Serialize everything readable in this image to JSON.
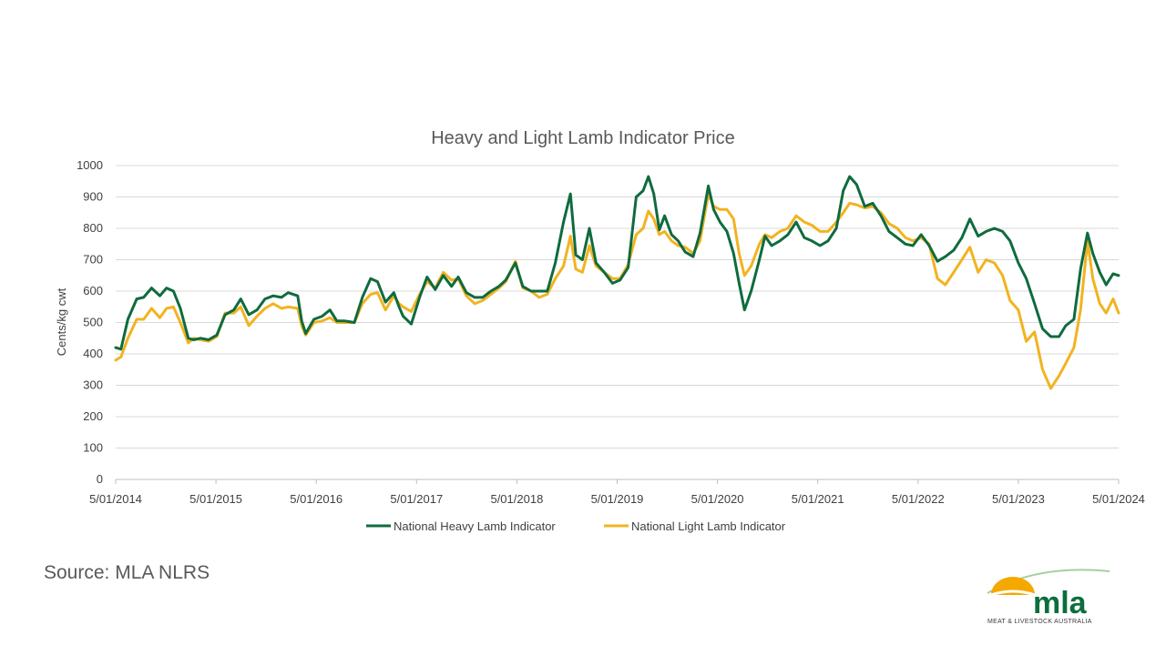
{
  "source": "Source: MLA NLRS",
  "logo": {
    "text": "mla",
    "tagline": "MEAT & LIVESTOCK AUSTRALIA",
    "colors": {
      "sun": "#f5a800",
      "text": "#0c6e3b",
      "arc": "#a6cfa0"
    }
  },
  "chart_data": {
    "type": "line",
    "title": "Heavy and Light Lamb Indicator Price",
    "ylabel": "Cents/kg cwt",
    "xlabel": "",
    "ylim": [
      0,
      1000
    ],
    "yticks": [
      0,
      100,
      200,
      300,
      400,
      500,
      600,
      700,
      800,
      900,
      1000
    ],
    "xlim": [
      "2014-01-05",
      "2024-05-01"
    ],
    "xtick_labels": [
      "5/01/2014",
      "5/01/2015",
      "5/01/2016",
      "5/01/2017",
      "5/01/2018",
      "5/01/2019",
      "5/01/2020",
      "5/01/2021",
      "5/01/2022",
      "5/01/2023",
      "5/01/2024"
    ],
    "grid": true,
    "legend": "bottom",
    "series": [
      {
        "name": "National Heavy Lamb Indicator",
        "color": "#0f6b3e",
        "points": [
          [
            "2014-01-05",
            420
          ],
          [
            "2014-01-25",
            415
          ],
          [
            "2014-02-20",
            510
          ],
          [
            "2014-03-25",
            575
          ],
          [
            "2014-04-20",
            580
          ],
          [
            "2014-05-20",
            610
          ],
          [
            "2014-06-20",
            585
          ],
          [
            "2014-07-15",
            610
          ],
          [
            "2014-08-10",
            600
          ],
          [
            "2014-09-05",
            545
          ],
          [
            "2014-10-05",
            450
          ],
          [
            "2014-10-25",
            445
          ],
          [
            "2014-11-20",
            450
          ],
          [
            "2014-12-20",
            445
          ],
          [
            "2015-01-20",
            460
          ],
          [
            "2015-02-20",
            525
          ],
          [
            "2015-03-25",
            540
          ],
          [
            "2015-04-20",
            575
          ],
          [
            "2015-05-20",
            525
          ],
          [
            "2015-06-20",
            540
          ],
          [
            "2015-07-20",
            575
          ],
          [
            "2015-08-20",
            585
          ],
          [
            "2015-09-20",
            580
          ],
          [
            "2015-10-15",
            595
          ],
          [
            "2015-11-20",
            585
          ],
          [
            "2015-12-05",
            505
          ],
          [
            "2015-12-20",
            465
          ],
          [
            "2016-01-20",
            510
          ],
          [
            "2016-02-20",
            520
          ],
          [
            "2016-03-20",
            540
          ],
          [
            "2016-04-15",
            505
          ],
          [
            "2016-05-15",
            505
          ],
          [
            "2016-06-20",
            500
          ],
          [
            "2016-07-20",
            580
          ],
          [
            "2016-08-20",
            640
          ],
          [
            "2016-09-15",
            630
          ],
          [
            "2016-10-15",
            565
          ],
          [
            "2016-11-15",
            595
          ],
          [
            "2016-12-05",
            550
          ],
          [
            "2016-12-20",
            520
          ],
          [
            "2017-01-20",
            495
          ],
          [
            "2017-02-20",
            580
          ],
          [
            "2017-03-20",
            645
          ],
          [
            "2017-04-20",
            605
          ],
          [
            "2017-05-20",
            650
          ],
          [
            "2017-06-20",
            615
          ],
          [
            "2017-07-15",
            645
          ],
          [
            "2017-08-15",
            595
          ],
          [
            "2017-09-15",
            580
          ],
          [
            "2017-10-15",
            580
          ],
          [
            "2017-11-15",
            600
          ],
          [
            "2017-12-15",
            615
          ],
          [
            "2018-01-10",
            635
          ],
          [
            "2018-02-15",
            690
          ],
          [
            "2018-03-15",
            615
          ],
          [
            "2018-04-15",
            600
          ],
          [
            "2018-05-15",
            600
          ],
          [
            "2018-06-15",
            600
          ],
          [
            "2018-07-15",
            690
          ],
          [
            "2018-08-15",
            820
          ],
          [
            "2018-09-10",
            910
          ],
          [
            "2018-09-30",
            715
          ],
          [
            "2018-10-25",
            700
          ],
          [
            "2018-11-20",
            800
          ],
          [
            "2018-12-15",
            690
          ],
          [
            "2019-01-15",
            660
          ],
          [
            "2019-02-15",
            625
          ],
          [
            "2019-03-15",
            635
          ],
          [
            "2019-04-15",
            675
          ],
          [
            "2019-05-15",
            900
          ],
          [
            "2019-06-10",
            920
          ],
          [
            "2019-06-30",
            965
          ],
          [
            "2019-07-20",
            910
          ],
          [
            "2019-08-10",
            795
          ],
          [
            "2019-08-30",
            840
          ],
          [
            "2019-09-25",
            780
          ],
          [
            "2019-10-20",
            760
          ],
          [
            "2019-11-15",
            725
          ],
          [
            "2019-12-15",
            710
          ],
          [
            "2020-01-10",
            785
          ],
          [
            "2020-02-10",
            935
          ],
          [
            "2020-03-01",
            860
          ],
          [
            "2020-03-25",
            820
          ],
          [
            "2020-04-20",
            790
          ],
          [
            "2020-05-15",
            720
          ],
          [
            "2020-06-05",
            625
          ],
          [
            "2020-06-25",
            540
          ],
          [
            "2020-07-20",
            600
          ],
          [
            "2020-08-20",
            700
          ],
          [
            "2020-09-10",
            775
          ],
          [
            "2020-10-05",
            745
          ],
          [
            "2020-11-05",
            760
          ],
          [
            "2020-12-05",
            780
          ],
          [
            "2021-01-05",
            820
          ],
          [
            "2021-02-05",
            770
          ],
          [
            "2021-03-05",
            760
          ],
          [
            "2021-04-05",
            745
          ],
          [
            "2021-05-05",
            760
          ],
          [
            "2021-06-05",
            800
          ],
          [
            "2021-07-01",
            920
          ],
          [
            "2021-07-25",
            965
          ],
          [
            "2021-08-20",
            940
          ],
          [
            "2021-09-20",
            870
          ],
          [
            "2021-10-20",
            880
          ],
          [
            "2021-11-20",
            840
          ],
          [
            "2021-12-20",
            790
          ],
          [
            "2022-01-20",
            770
          ],
          [
            "2022-02-20",
            750
          ],
          [
            "2022-03-20",
            745
          ],
          [
            "2022-04-20",
            780
          ],
          [
            "2022-05-20",
            745
          ],
          [
            "2022-06-20",
            695
          ],
          [
            "2022-07-20",
            710
          ],
          [
            "2022-08-20",
            730
          ],
          [
            "2022-09-20",
            770
          ],
          [
            "2022-10-20",
            830
          ],
          [
            "2022-11-20",
            775
          ],
          [
            "2022-12-20",
            790
          ],
          [
            "2023-01-20",
            800
          ],
          [
            "2023-02-20",
            790
          ],
          [
            "2023-03-20",
            760
          ],
          [
            "2023-04-20",
            690
          ],
          [
            "2023-05-20",
            640
          ],
          [
            "2023-06-20",
            560
          ],
          [
            "2023-07-20",
            480
          ],
          [
            "2023-08-20",
            455
          ],
          [
            "2023-09-20",
            455
          ],
          [
            "2023-10-15",
            490
          ],
          [
            "2023-11-15",
            510
          ],
          [
            "2023-12-10",
            670
          ],
          [
            "2024-01-05",
            785
          ],
          [
            "2024-01-25",
            720
          ],
          [
            "2024-02-20",
            660
          ],
          [
            "2024-03-15",
            620
          ],
          [
            "2024-04-10",
            655
          ],
          [
            "2024-05-01",
            650
          ]
        ]
      },
      {
        "name": "National Light Lamb Indicator",
        "color": "#f2b320",
        "points": [
          [
            "2014-01-05",
            380
          ],
          [
            "2014-01-25",
            390
          ],
          [
            "2014-02-20",
            450
          ],
          [
            "2014-03-25",
            510
          ],
          [
            "2014-04-20",
            510
          ],
          [
            "2014-05-20",
            545
          ],
          [
            "2014-06-20",
            515
          ],
          [
            "2014-07-15",
            545
          ],
          [
            "2014-08-10",
            550
          ],
          [
            "2014-09-05",
            500
          ],
          [
            "2014-10-05",
            435
          ],
          [
            "2014-10-25",
            450
          ],
          [
            "2014-11-20",
            445
          ],
          [
            "2014-12-20",
            440
          ],
          [
            "2015-01-20",
            455
          ],
          [
            "2015-02-20",
            530
          ],
          [
            "2015-03-25",
            530
          ],
          [
            "2015-04-20",
            550
          ],
          [
            "2015-05-20",
            490
          ],
          [
            "2015-06-20",
            520
          ],
          [
            "2015-07-20",
            545
          ],
          [
            "2015-08-20",
            560
          ],
          [
            "2015-09-20",
            545
          ],
          [
            "2015-10-15",
            550
          ],
          [
            "2015-11-20",
            545
          ],
          [
            "2015-12-05",
            490
          ],
          [
            "2015-12-20",
            460
          ],
          [
            "2016-01-20",
            500
          ],
          [
            "2016-02-20",
            505
          ],
          [
            "2016-03-20",
            515
          ],
          [
            "2016-04-15",
            500
          ],
          [
            "2016-05-15",
            500
          ],
          [
            "2016-06-20",
            500
          ],
          [
            "2016-07-20",
            560
          ],
          [
            "2016-08-20",
            590
          ],
          [
            "2016-09-15",
            595
          ],
          [
            "2016-10-15",
            540
          ],
          [
            "2016-11-15",
            585
          ],
          [
            "2016-12-05",
            560
          ],
          [
            "2016-12-20",
            550
          ],
          [
            "2017-01-20",
            535
          ],
          [
            "2017-02-20",
            590
          ],
          [
            "2017-03-20",
            630
          ],
          [
            "2017-04-20",
            610
          ],
          [
            "2017-05-20",
            660
          ],
          [
            "2017-06-20",
            635
          ],
          [
            "2017-07-15",
            640
          ],
          [
            "2017-08-15",
            585
          ],
          [
            "2017-09-15",
            560
          ],
          [
            "2017-10-15",
            570
          ],
          [
            "2017-11-15",
            590
          ],
          [
            "2017-12-15",
            610
          ],
          [
            "2018-01-10",
            630
          ],
          [
            "2018-02-15",
            695
          ],
          [
            "2018-03-15",
            610
          ],
          [
            "2018-04-15",
            600
          ],
          [
            "2018-05-15",
            580
          ],
          [
            "2018-06-15",
            590
          ],
          [
            "2018-07-15",
            640
          ],
          [
            "2018-08-15",
            680
          ],
          [
            "2018-09-10",
            775
          ],
          [
            "2018-09-30",
            670
          ],
          [
            "2018-10-25",
            660
          ],
          [
            "2018-11-20",
            745
          ],
          [
            "2018-12-15",
            680
          ],
          [
            "2019-01-15",
            660
          ],
          [
            "2019-02-15",
            640
          ],
          [
            "2019-03-15",
            640
          ],
          [
            "2019-04-15",
            685
          ],
          [
            "2019-05-15",
            780
          ],
          [
            "2019-06-10",
            800
          ],
          [
            "2019-06-30",
            855
          ],
          [
            "2019-07-20",
            830
          ],
          [
            "2019-08-10",
            780
          ],
          [
            "2019-08-30",
            790
          ],
          [
            "2019-09-25",
            760
          ],
          [
            "2019-10-20",
            745
          ],
          [
            "2019-11-15",
            740
          ],
          [
            "2019-12-15",
            720
          ],
          [
            "2020-01-10",
            760
          ],
          [
            "2020-02-10",
            910
          ],
          [
            "2020-03-01",
            870
          ],
          [
            "2020-03-25",
            860
          ],
          [
            "2020-04-20",
            860
          ],
          [
            "2020-05-15",
            830
          ],
          [
            "2020-06-05",
            720
          ],
          [
            "2020-06-25",
            650
          ],
          [
            "2020-07-20",
            680
          ],
          [
            "2020-08-20",
            750
          ],
          [
            "2020-09-10",
            780
          ],
          [
            "2020-10-05",
            770
          ],
          [
            "2020-11-05",
            790
          ],
          [
            "2020-12-05",
            800
          ],
          [
            "2021-01-05",
            840
          ],
          [
            "2021-02-05",
            820
          ],
          [
            "2021-03-05",
            810
          ],
          [
            "2021-04-05",
            790
          ],
          [
            "2021-05-05",
            790
          ],
          [
            "2021-06-05",
            820
          ],
          [
            "2021-07-01",
            850
          ],
          [
            "2021-07-25",
            880
          ],
          [
            "2021-08-20",
            875
          ],
          [
            "2021-09-20",
            865
          ],
          [
            "2021-10-20",
            870
          ],
          [
            "2021-11-20",
            850
          ],
          [
            "2021-12-20",
            815
          ],
          [
            "2022-01-20",
            800
          ],
          [
            "2022-02-20",
            770
          ],
          [
            "2022-03-20",
            760
          ],
          [
            "2022-04-20",
            770
          ],
          [
            "2022-05-20",
            750
          ],
          [
            "2022-06-20",
            640
          ],
          [
            "2022-07-20",
            620
          ],
          [
            "2022-08-20",
            660
          ],
          [
            "2022-09-20",
            700
          ],
          [
            "2022-10-20",
            740
          ],
          [
            "2022-11-20",
            660
          ],
          [
            "2022-12-20",
            700
          ],
          [
            "2023-01-20",
            690
          ],
          [
            "2023-02-20",
            650
          ],
          [
            "2023-03-20",
            570
          ],
          [
            "2023-04-20",
            540
          ],
          [
            "2023-05-20",
            440
          ],
          [
            "2023-06-20",
            470
          ],
          [
            "2023-07-20",
            350
          ],
          [
            "2023-08-20",
            290
          ],
          [
            "2023-09-20",
            330
          ],
          [
            "2023-10-15",
            370
          ],
          [
            "2023-11-15",
            420
          ],
          [
            "2023-12-10",
            540
          ],
          [
            "2024-01-05",
            760
          ],
          [
            "2024-01-25",
            640
          ],
          [
            "2024-02-20",
            560
          ],
          [
            "2024-03-15",
            530
          ],
          [
            "2024-04-10",
            575
          ],
          [
            "2024-05-01",
            530
          ]
        ]
      }
    ]
  }
}
